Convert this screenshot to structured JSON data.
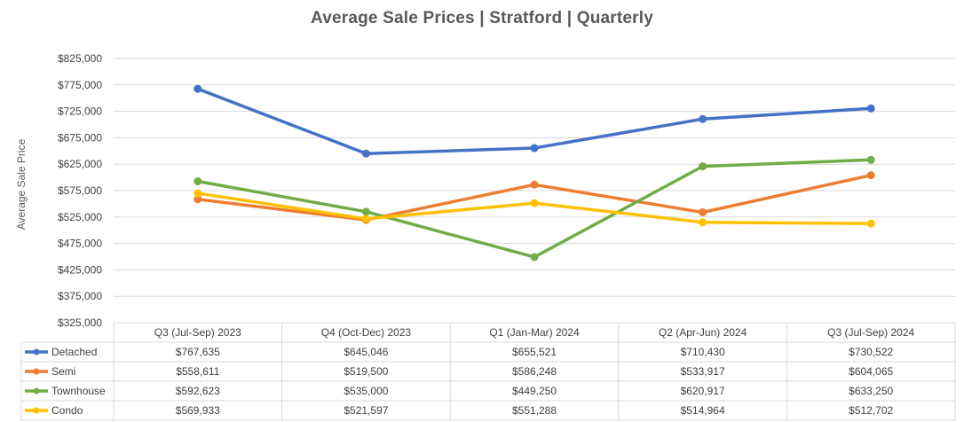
{
  "chart_data": {
    "type": "line",
    "title": "Average Sale Prices | Stratford |  Quarterly",
    "xlabel": "",
    "ylabel": "Average Sale Price",
    "ylim": [
      325000,
      825000
    ],
    "ytick_values": [
      325000,
      375000,
      425000,
      475000,
      525000,
      575000,
      625000,
      675000,
      725000,
      775000,
      825000
    ],
    "ytick_labels": [
      "$325,000",
      "$375,000",
      "$425,000",
      "$475,000",
      "$525,000",
      "$575,000",
      "$625,000",
      "$675,000",
      "$725,000",
      "$775,000",
      "$825,000"
    ],
    "grid": true,
    "legend": "data-table",
    "categories": [
      "Q3 (Jul-Sep) 2023",
      "Q4 (Oct-Dec) 2023",
      "Q1 (Jan-Mar) 2024",
      "Q2 (Apr-Jun) 2024",
      "Q3 (Jul-Sep) 2024"
    ],
    "series": [
      {
        "name": "Detached",
        "color": "#4472C4",
        "values": [
          767635,
          645046,
          655521,
          710430,
          730522
        ],
        "labels": [
          "$767,635",
          "$645,046",
          "$655,521",
          "$710,430",
          "$730,522"
        ]
      },
      {
        "name": "Semi",
        "color": "#ED7D31",
        "values": [
          558611,
          519500,
          586248,
          533917,
          604065
        ],
        "labels": [
          "$558,611",
          "$519,500",
          "$586,248",
          "$533,917",
          "$604,065"
        ]
      },
      {
        "name": "Townhouse",
        "color": "#70AD47",
        "values": [
          592623,
          535000,
          449250,
          620917,
          633250
        ],
        "labels": [
          "$592,623",
          "$535,000",
          "$449,250",
          "$620,917",
          "$633,250"
        ]
      },
      {
        "name": "Condo",
        "color": "#FFC000",
        "values": [
          569933,
          521597,
          551288,
          514964,
          512702
        ],
        "labels": [
          "$569,933",
          "$521,597",
          "$551,288",
          "$514,964",
          "$512,702"
        ]
      }
    ]
  }
}
